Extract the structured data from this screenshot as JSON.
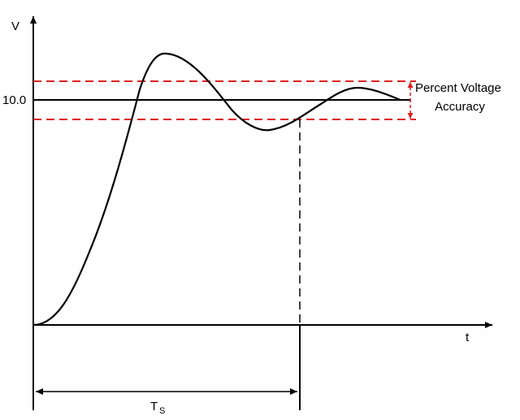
{
  "axes": {
    "y_label": "V",
    "x_label": "t"
  },
  "reference": {
    "value_label": "10.0"
  },
  "tolerance_band": {
    "label_line1": "Percent Voltage",
    "label_line2": "Accuracy",
    "color": "#e02020"
  },
  "settling": {
    "label_main": "T",
    "label_sub": "S"
  },
  "colors": {
    "curve": "#000000",
    "axes": "#000000"
  }
}
